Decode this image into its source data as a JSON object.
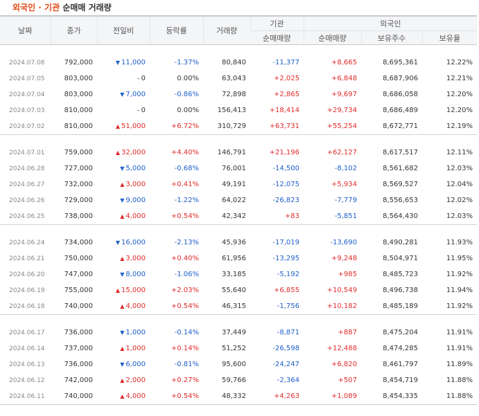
{
  "title": {
    "accent": "외국인 · 기관",
    "rest": "순매매 거래량"
  },
  "headers": {
    "date": "날짜",
    "close": "종가",
    "change": "전일비",
    "rate": "등락률",
    "volume": "거래량",
    "inst_group": "기관",
    "inst_net": "순매매량",
    "foreign_group": "외국인",
    "foreign_net": "순매매량",
    "foreign_holdings": "보유주수",
    "foreign_ratio": "보유율"
  },
  "icons": {
    "up": "▲",
    "down": "▼",
    "same": "–"
  },
  "colors": {
    "up": "#e12a2a",
    "down": "#1c5ec9",
    "accent": "#e0460f"
  },
  "groups": [
    {
      "rows": [
        {
          "date": "2024.07.08",
          "close": "792,000",
          "dir": "down",
          "change": "11,000",
          "rate": "-1.37%",
          "volume": "80,840",
          "inst": "-11,377",
          "foreign": "+8,665",
          "holdings": "8,695,361",
          "ratio": "12.22%"
        },
        {
          "date": "2024.07.05",
          "close": "803,000",
          "dir": "same",
          "change": "0",
          "rate": "0.00%",
          "volume": "63,043",
          "inst": "+2,025",
          "foreign": "+6,848",
          "holdings": "8,687,906",
          "ratio": "12.21%"
        },
        {
          "date": "2024.07.04",
          "close": "803,000",
          "dir": "down",
          "change": "7,000",
          "rate": "-0.86%",
          "volume": "72,898",
          "inst": "+2,865",
          "foreign": "+9,697",
          "holdings": "8,686,058",
          "ratio": "12.20%"
        },
        {
          "date": "2024.07.03",
          "close": "810,000",
          "dir": "same",
          "change": "0",
          "rate": "0.00%",
          "volume": "156,413",
          "inst": "+18,414",
          "foreign": "+29,734",
          "holdings": "8,686,489",
          "ratio": "12.20%"
        },
        {
          "date": "2024.07.02",
          "close": "810,000",
          "dir": "up",
          "change": "51,000",
          "rate": "+6.72%",
          "volume": "310,729",
          "inst": "+63,731",
          "foreign": "+55,254",
          "holdings": "8,672,771",
          "ratio": "12.19%"
        }
      ]
    },
    {
      "rows": [
        {
          "date": "2024.07.01",
          "close": "759,000",
          "dir": "up",
          "change": "32,000",
          "rate": "+4.40%",
          "volume": "146,791",
          "inst": "+21,196",
          "foreign": "+62,127",
          "holdings": "8,617,517",
          "ratio": "12.11%"
        },
        {
          "date": "2024.06.28",
          "close": "727,000",
          "dir": "down",
          "change": "5,000",
          "rate": "-0.68%",
          "volume": "76,001",
          "inst": "-14,500",
          "foreign": "-8,102",
          "holdings": "8,561,682",
          "ratio": "12.03%"
        },
        {
          "date": "2024.06.27",
          "close": "732,000",
          "dir": "up",
          "change": "3,000",
          "rate": "+0.41%",
          "volume": "49,191",
          "inst": "-12,075",
          "foreign": "+5,934",
          "holdings": "8,569,527",
          "ratio": "12.04%"
        },
        {
          "date": "2024.06.26",
          "close": "729,000",
          "dir": "down",
          "change": "9,000",
          "rate": "-1.22%",
          "volume": "64,022",
          "inst": "-26,823",
          "foreign": "-7,779",
          "holdings": "8,556,653",
          "ratio": "12.02%"
        },
        {
          "date": "2024.06.25",
          "close": "738,000",
          "dir": "up",
          "change": "4,000",
          "rate": "+0.54%",
          "volume": "42,342",
          "inst": "+83",
          "foreign": "-5,851",
          "holdings": "8,564,430",
          "ratio": "12.03%"
        }
      ]
    },
    {
      "rows": [
        {
          "date": "2024.06.24",
          "close": "734,000",
          "dir": "down",
          "change": "16,000",
          "rate": "-2.13%",
          "volume": "45,936",
          "inst": "-17,019",
          "foreign": "-13,690",
          "holdings": "8,490,281",
          "ratio": "11.93%"
        },
        {
          "date": "2024.06.21",
          "close": "750,000",
          "dir": "up",
          "change": "3,000",
          "rate": "+0.40%",
          "volume": "61,956",
          "inst": "-13,295",
          "foreign": "+9,248",
          "holdings": "8,504,971",
          "ratio": "11.95%"
        },
        {
          "date": "2024.06.20",
          "close": "747,000",
          "dir": "down",
          "change": "8,000",
          "rate": "-1.06%",
          "volume": "33,185",
          "inst": "-5,192",
          "foreign": "+985",
          "holdings": "8,485,723",
          "ratio": "11.92%"
        },
        {
          "date": "2024.06.19",
          "close": "755,000",
          "dir": "up",
          "change": "15,000",
          "rate": "+2.03%",
          "volume": "55,640",
          "inst": "+6,855",
          "foreign": "+10,549",
          "holdings": "8,496,738",
          "ratio": "11.94%"
        },
        {
          "date": "2024.06.18",
          "close": "740,000",
          "dir": "up",
          "change": "4,000",
          "rate": "+0.54%",
          "volume": "46,315",
          "inst": "-1,756",
          "foreign": "+10,182",
          "holdings": "8,485,189",
          "ratio": "11.92%"
        }
      ]
    },
    {
      "rows": [
        {
          "date": "2024.06.17",
          "close": "736,000",
          "dir": "down",
          "change": "1,000",
          "rate": "-0.14%",
          "volume": "37,449",
          "inst": "-8,871",
          "foreign": "+887",
          "holdings": "8,475,204",
          "ratio": "11.91%"
        },
        {
          "date": "2024.06.14",
          "close": "737,000",
          "dir": "up",
          "change": "1,000",
          "rate": "+0.14%",
          "volume": "51,252",
          "inst": "-26,598",
          "foreign": "+12,488",
          "holdings": "8,474,285",
          "ratio": "11.91%"
        },
        {
          "date": "2024.06.13",
          "close": "736,000",
          "dir": "down",
          "change": "6,000",
          "rate": "-0.81%",
          "volume": "95,600",
          "inst": "-24,247",
          "foreign": "+6,820",
          "holdings": "8,461,797",
          "ratio": "11.89%"
        },
        {
          "date": "2024.06.12",
          "close": "742,000",
          "dir": "up",
          "change": "2,000",
          "rate": "+0.27%",
          "volume": "59,766",
          "inst": "-2,364",
          "foreign": "+507",
          "holdings": "8,454,719",
          "ratio": "11.88%"
        },
        {
          "date": "2024.06.11",
          "close": "740,000",
          "dir": "up",
          "change": "4,000",
          "rate": "+0.54%",
          "volume": "48,332",
          "inst": "+4,263",
          "foreign": "+1,089",
          "holdings": "8,454,335",
          "ratio": "11.88%"
        }
      ]
    }
  ]
}
